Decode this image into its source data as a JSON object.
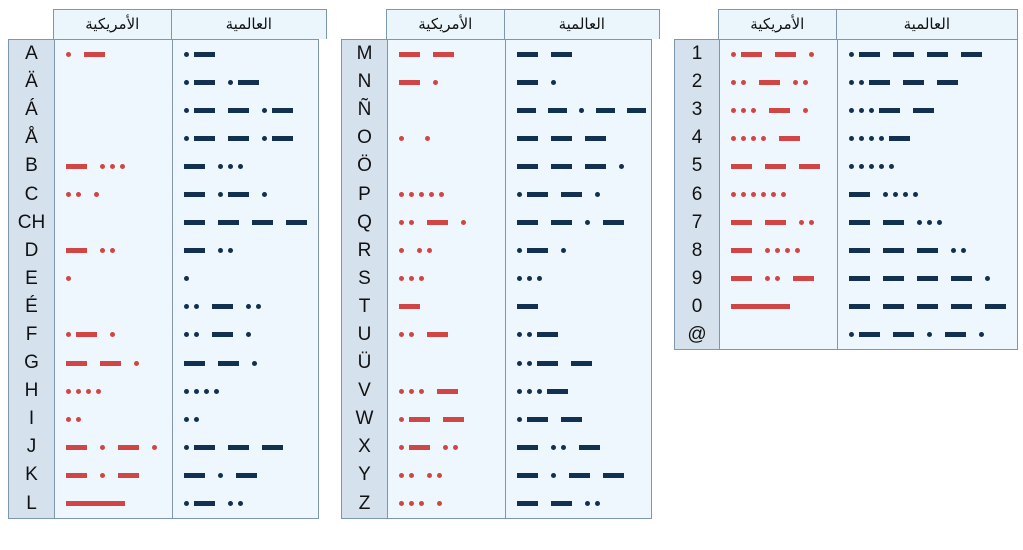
{
  "headers": {
    "american": "الأمريكية",
    "international": "العالمية"
  },
  "colors": {
    "american": "#d24545",
    "international": "#12304f",
    "border": "#7f97ad",
    "letter_bg": "#d6e1ee",
    "cell_bg": "#eef7fd"
  },
  "legend_encoding": {
    ".": "dot",
    "-": "dash",
    "_": "long dash",
    " ": "gap"
  },
  "tables": [
    {
      "rows": [
        {
          "char": "A",
          "american": ". -",
          "international": ".-"
        },
        {
          "char": "Ä",
          "american": "",
          "international": ".- .-"
        },
        {
          "char": "Á",
          "american": "",
          "international": ".- - .-"
        },
        {
          "char": "Å",
          "american": "",
          "international": ".- - .-"
        },
        {
          "char": "B",
          "american": "- ...",
          "international": "- ..."
        },
        {
          "char": "C",
          "american": ".. .",
          "international": "- .- ."
        },
        {
          "char": "CH",
          "american": "",
          "international": "- - - -"
        },
        {
          "char": "D",
          "american": "- ..",
          "international": "- .."
        },
        {
          "char": "E",
          "american": ".",
          "international": "."
        },
        {
          "char": "É",
          "american": "",
          "international": ".. - .."
        },
        {
          "char": "F",
          "american": ".- .",
          "international": ".. - ."
        },
        {
          "char": "G",
          "american": "- - .",
          "international": "- - ."
        },
        {
          "char": "H",
          "american": "....",
          "international": "...."
        },
        {
          "char": "I",
          "american": "..",
          "international": ".."
        },
        {
          "char": "J",
          "american": "- . - .",
          "international": ".- - -"
        },
        {
          "char": "K",
          "american": "- . -",
          "international": "- . -"
        },
        {
          "char": "L",
          "american": "_",
          "international": ".- .."
        }
      ]
    },
    {
      "rows": [
        {
          "char": "M",
          "american": "- -",
          "international": "- -"
        },
        {
          "char": "N",
          "american": "- .",
          "international": "- ."
        },
        {
          "char": "Ñ",
          "american": "",
          "international": "- - . - -"
        },
        {
          "char": "O",
          "american": ".  .",
          "international": "- - -"
        },
        {
          "char": "Ö",
          "american": "",
          "international": "- - - ."
        },
        {
          "char": "P",
          "american": ".....",
          "international": ".- - ."
        },
        {
          "char": "Q",
          "american": ".. - .",
          "international": "- - . -"
        },
        {
          "char": "R",
          "american": ". ..",
          "international": ".- ."
        },
        {
          "char": "S",
          "american": "...",
          "international": "..."
        },
        {
          "char": "T",
          "american": "-",
          "international": "-"
        },
        {
          "char": "U",
          "american": ".. -",
          "international": "..-"
        },
        {
          "char": "Ü",
          "american": "",
          "international": "..- -"
        },
        {
          "char": "V",
          "american": "... -",
          "international": "...-"
        },
        {
          "char": "W",
          "american": ".- -",
          "international": ".- -"
        },
        {
          "char": "X",
          "american": ".- ..",
          "international": "- .. -"
        },
        {
          "char": "Y",
          "american": ".. ..",
          "international": "- . - -"
        },
        {
          "char": "Z",
          "american": "... .",
          "international": "- - .."
        }
      ]
    },
    {
      "rows": [
        {
          "char": "1",
          "american": ".- - .",
          "international": ".- - - -"
        },
        {
          "char": "2",
          "american": ".. - ..",
          "international": "..- - -"
        },
        {
          "char": "3",
          "american": "... - .",
          "international": "...- -"
        },
        {
          "char": "4",
          "american": ".... -",
          "international": "....-"
        },
        {
          "char": "5",
          "american": "- - -",
          "international": "....."
        },
        {
          "char": "6",
          "american": "......",
          "international": "- ...."
        },
        {
          "char": "7",
          "american": "- - ..",
          "international": "- - ..."
        },
        {
          "char": "8",
          "american": "- ....",
          "international": "- - - .."
        },
        {
          "char": "9",
          "american": "- .. -",
          "international": "- - - - ."
        },
        {
          "char": "0",
          "american": "_",
          "international": "- - - - -"
        },
        {
          "char": "@",
          "american": "",
          "international": ".- - . - ."
        }
      ]
    }
  ]
}
